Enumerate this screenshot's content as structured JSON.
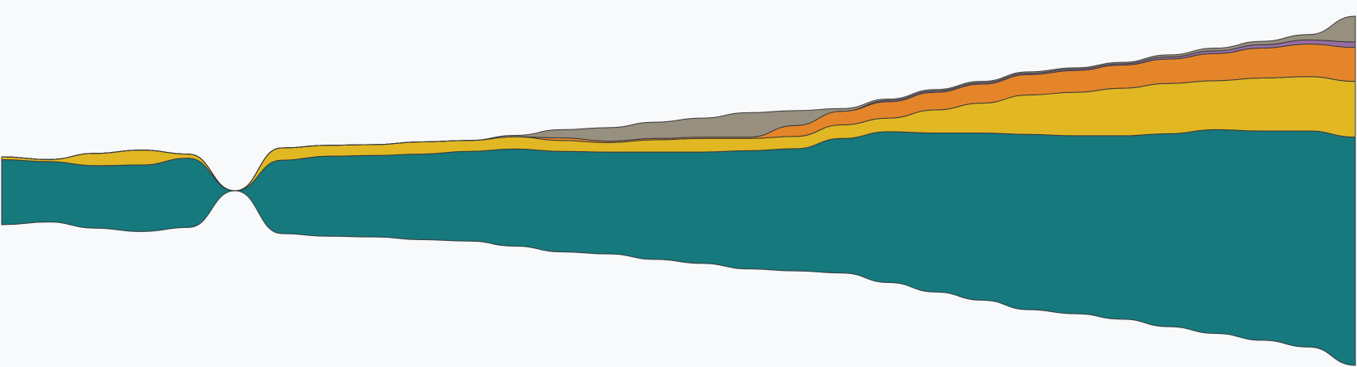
{
  "chart_data": {
    "type": "area",
    "layout": "streamgraph",
    "baseline": "centered",
    "title": "",
    "xlabel": "",
    "ylabel": "",
    "grid": false,
    "legend": "none",
    "x": [
      0,
      1,
      2,
      3,
      4,
      5,
      6,
      7,
      8,
      9,
      10,
      11,
      12,
      13,
      14,
      15,
      16,
      17,
      18,
      19,
      20,
      21,
      22,
      23,
      24,
      25,
      26,
      27,
      28,
      29
    ],
    "series": [
      {
        "color": "#15797e",
        "values": [
          96,
          89,
          92,
          98,
          102,
          0,
          108,
          118,
          120,
          126,
          132,
          143,
          148,
          150,
          158,
          164,
          174,
          180,
          198,
          222,
          234,
          246,
          258,
          262,
          270,
          284,
          300,
          308,
          318,
          336
        ]
      },
      {
        "color": "#e1b823",
        "values": [
          4,
          3,
          18,
          22,
          6,
          0,
          18,
          16,
          16,
          18,
          16,
          18,
          16,
          14,
          18,
          20,
          18,
          18,
          20,
          20,
          34,
          44,
          58,
          64,
          70,
          74,
          72,
          78,
          80,
          82
        ]
      },
      {
        "color": "#e5852a",
        "values": [
          0,
          0,
          0,
          0,
          0,
          0,
          0,
          0,
          0,
          0,
          0,
          0,
          4,
          2,
          2,
          2,
          2,
          16,
          20,
          24,
          26,
          28,
          30,
          32,
          34,
          36,
          40,
          44,
          48,
          50
        ]
      },
      {
        "color": "#976da1",
        "values": [
          0,
          0,
          0,
          0,
          0,
          0,
          0,
          0,
          0,
          0,
          0,
          0,
          0,
          0,
          0,
          0,
          0,
          0,
          0,
          2,
          2,
          2,
          2,
          2,
          2,
          3,
          4,
          5,
          6,
          8
        ]
      },
      {
        "color": "#978f7f",
        "values": [
          0,
          0,
          0,
          0,
          0,
          0,
          0,
          0,
          0,
          0,
          0,
          2,
          12,
          20,
          24,
          28,
          36,
          22,
          4,
          2,
          2,
          2,
          2,
          2,
          2,
          3,
          4,
          5,
          8,
          38
        ]
      }
    ]
  },
  "colors": {
    "background": "#f7f9fb",
    "stroke": "#3a3a3a"
  }
}
